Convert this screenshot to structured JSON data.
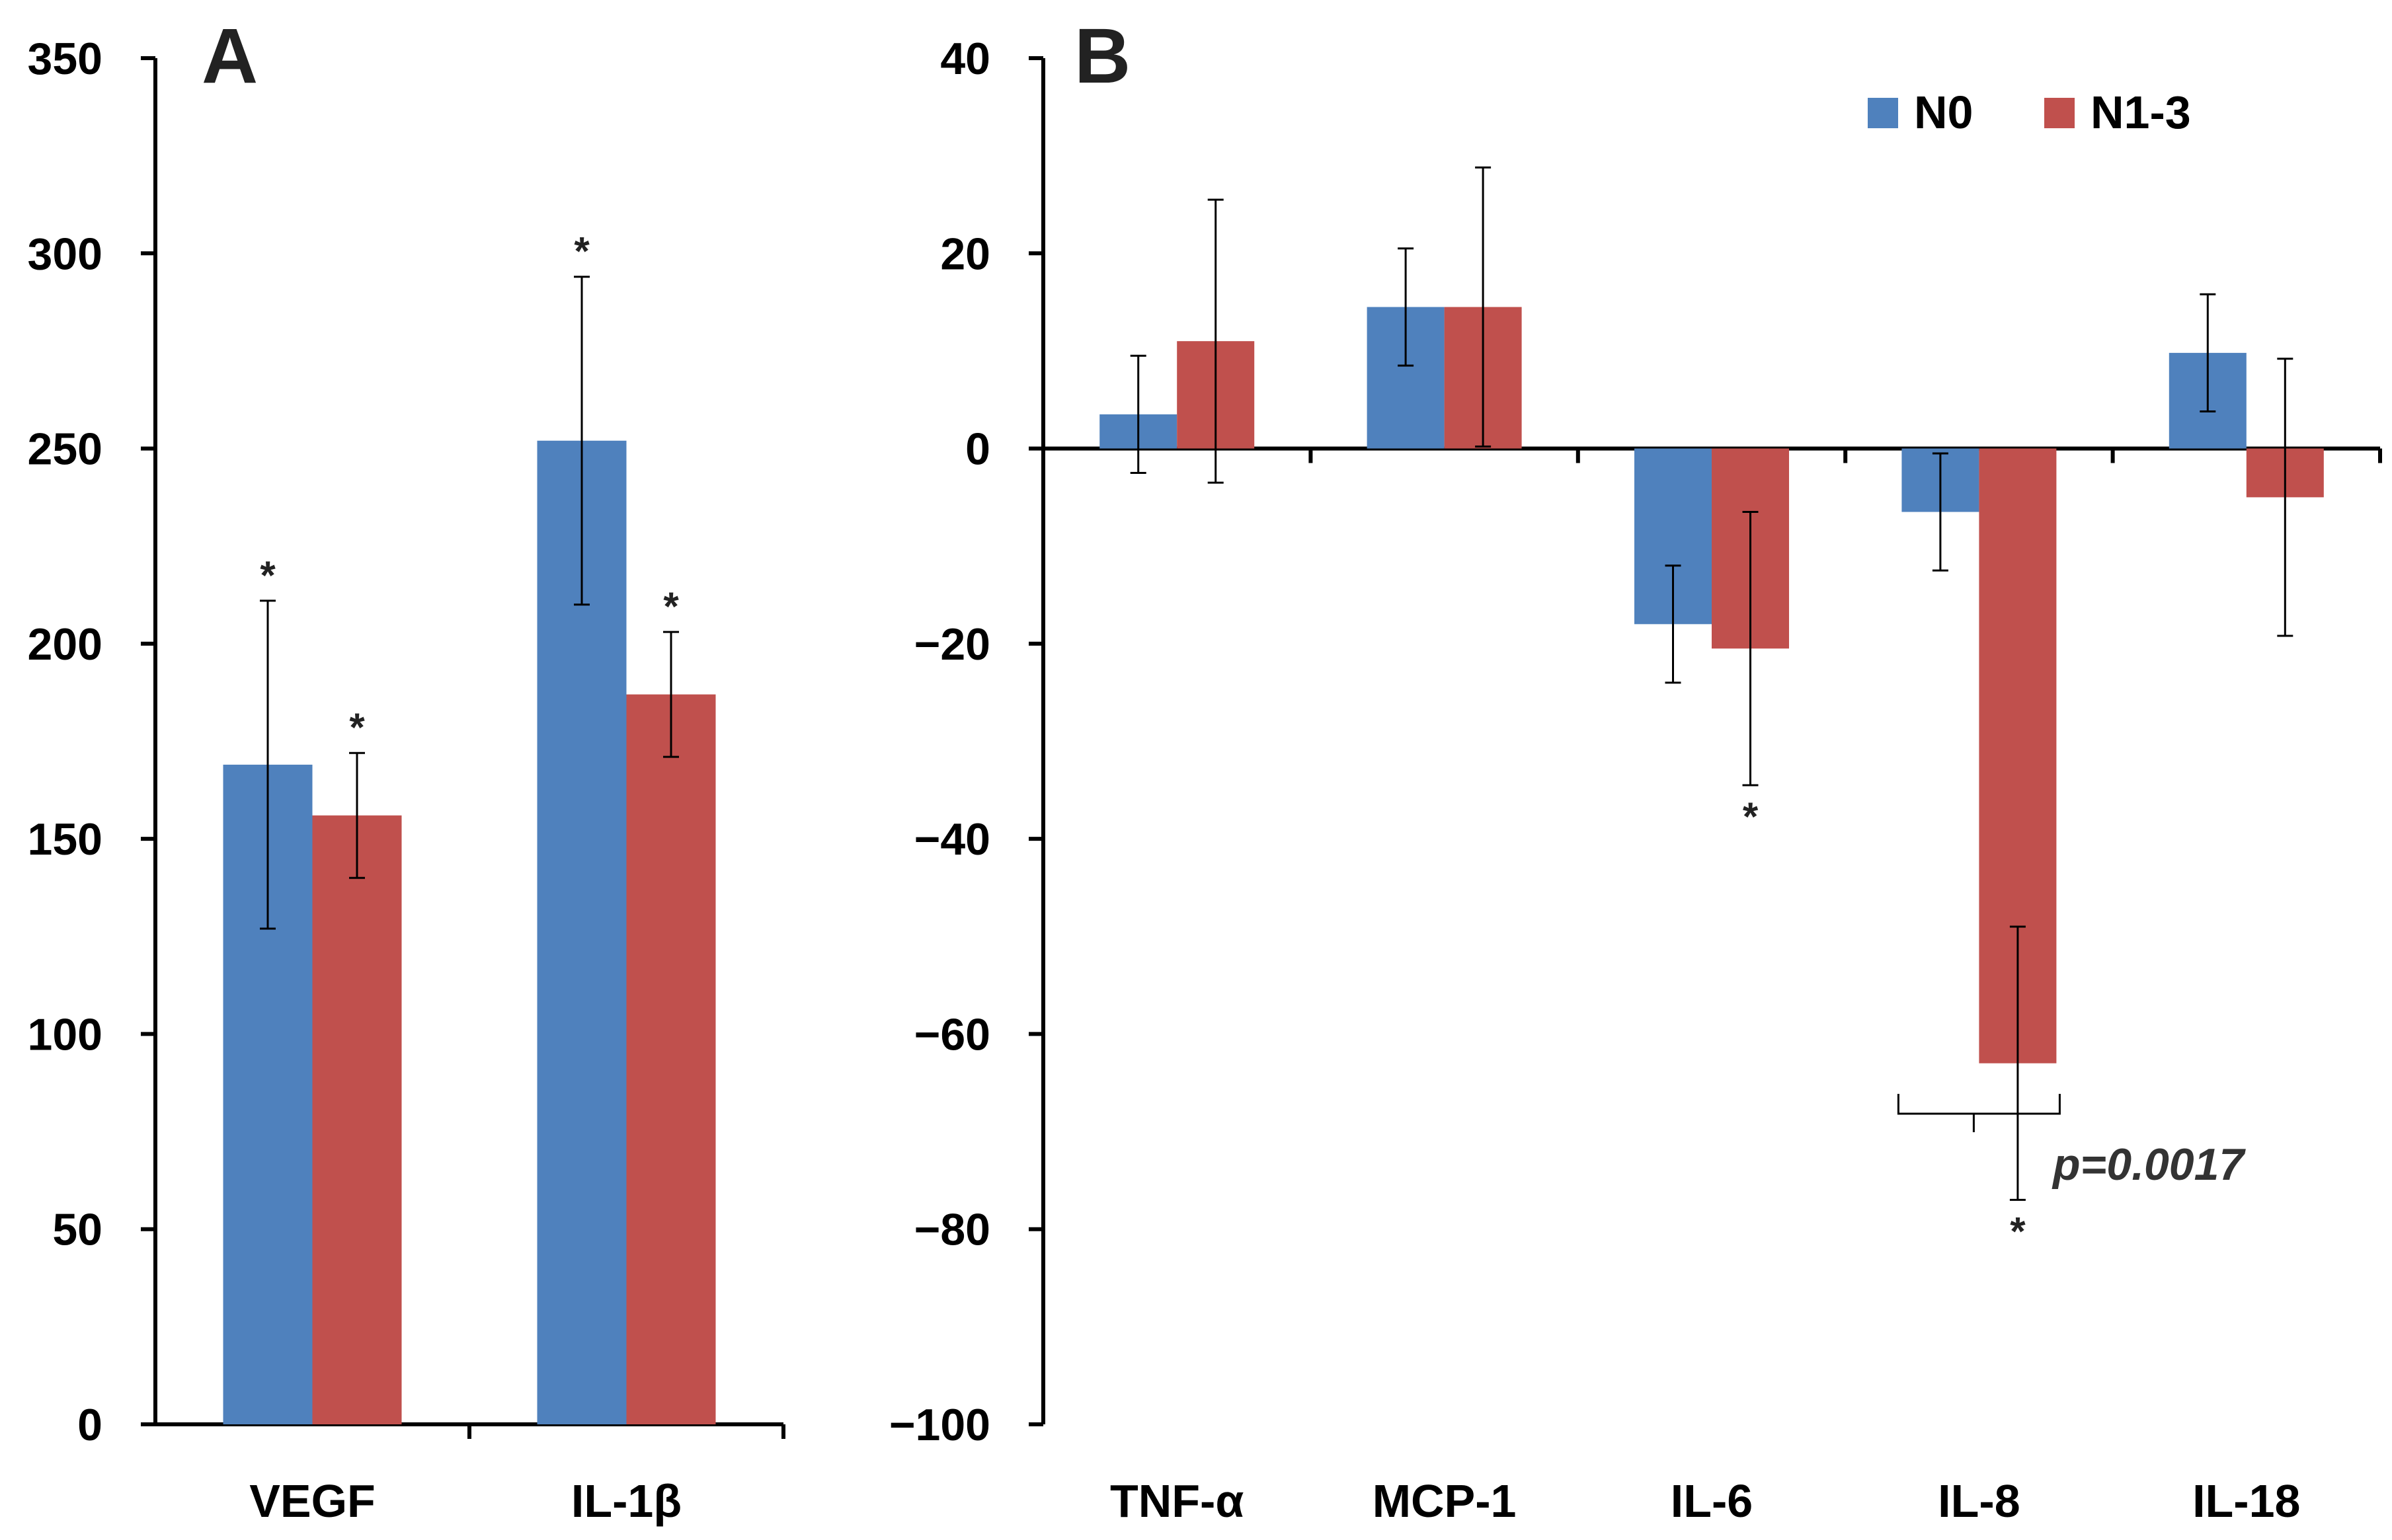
{
  "chart_data": [
    {
      "type": "bar",
      "panel": "A",
      "categories": [
        "VEGF",
        "IL-1β"
      ],
      "ylim": [
        0,
        350
      ],
      "yticks": [
        0,
        50,
        100,
        150,
        200,
        250,
        300,
        350
      ],
      "series": [
        {
          "name": "N0",
          "color": "#4F81BD",
          "values": [
            169,
            252
          ],
          "error": [
            42,
            42
          ],
          "significant": [
            true,
            true
          ]
        },
        {
          "name": "N1-3",
          "color": "#C0504D",
          "values": [
            156,
            187
          ],
          "error": [
            16,
            16
          ],
          "significant": [
            true,
            true
          ]
        }
      ],
      "grid": false
    },
    {
      "type": "bar",
      "panel": "B",
      "categories": [
        "TNF-α",
        "MCP-1",
        "IL-6",
        "IL-8",
        "IL-18"
      ],
      "ylim": [
        -100,
        40
      ],
      "yticks": [
        -100,
        -80,
        -60,
        -40,
        -20,
        0,
        20,
        40
      ],
      "series": [
        {
          "name": "N0",
          "color": "#4F81BD",
          "values": [
            3.5,
            14.5,
            -18,
            -6.5,
            9.8
          ],
          "error": [
            6,
            6,
            6,
            6,
            6
          ],
          "significant": [
            false,
            false,
            false,
            false,
            false
          ]
        },
        {
          "name": "N1-3",
          "color": "#C0504D",
          "values": [
            11,
            14.5,
            -20.5,
            -63,
            -5
          ],
          "error": [
            14.5,
            14.3,
            14,
            14,
            14.2
          ],
          "significant": [
            false,
            false,
            true,
            true,
            false
          ]
        }
      ],
      "annotation": {
        "text": "p=0.0017",
        "category": "IL-8"
      },
      "legend": {
        "position": "top-right",
        "entries": [
          "N0",
          "N1-3"
        ]
      },
      "grid": false
    }
  ],
  "labels": {
    "panel_a": "A",
    "panel_b": "B",
    "significance_marker": "*"
  }
}
